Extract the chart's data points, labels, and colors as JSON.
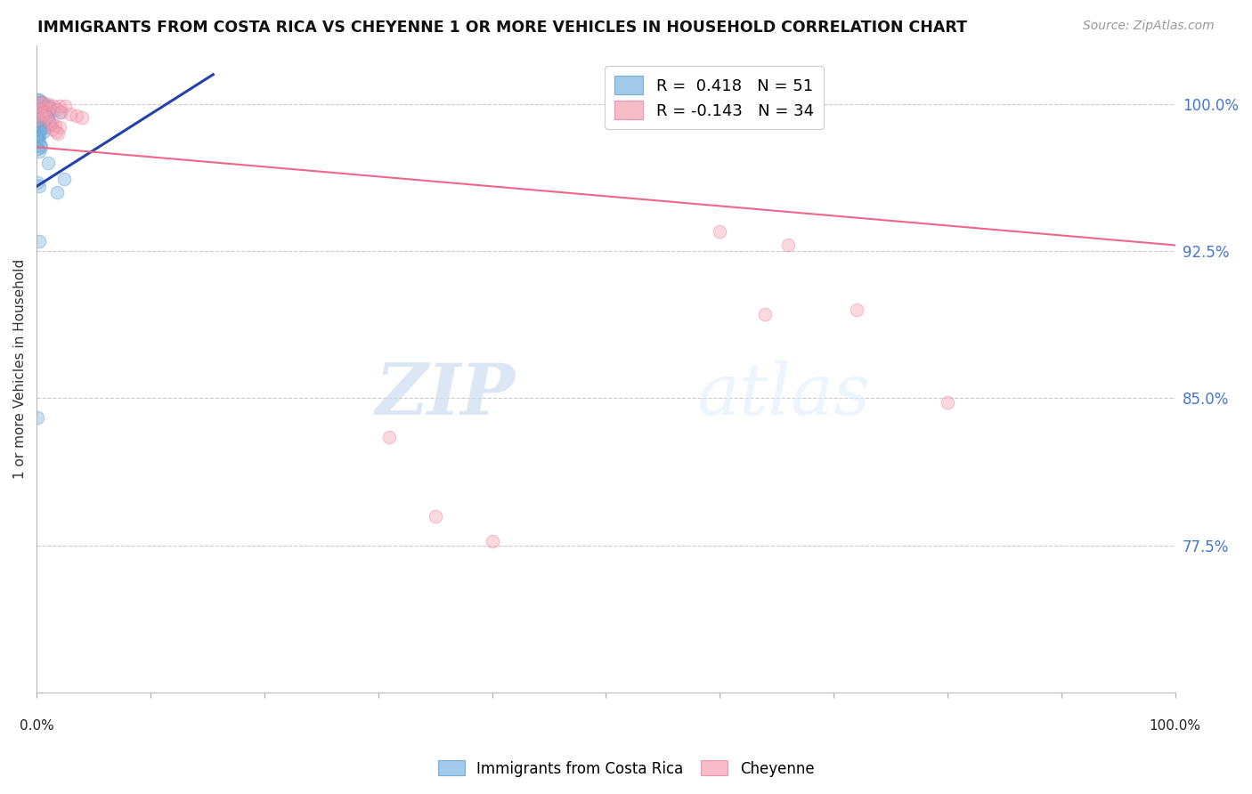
{
  "title": "IMMIGRANTS FROM COSTA RICA VS CHEYENNE 1 OR MORE VEHICLES IN HOUSEHOLD CORRELATION CHART",
  "source": "Source: ZipAtlas.com",
  "ylabel": "1 or more Vehicles in Household",
  "y_tick_labels": [
    "100.0%",
    "92.5%",
    "85.0%",
    "77.5%"
  ],
  "y_tick_values": [
    1.0,
    0.925,
    0.85,
    0.775
  ],
  "x_range": [
    0.0,
    1.0
  ],
  "y_range": [
    0.7,
    1.03
  ],
  "blue_scatter": [
    [
      0.001,
      1.002
    ],
    [
      0.002,
      1.002
    ],
    [
      0.003,
      1.001
    ],
    [
      0.004,
      1.001
    ],
    [
      0.005,
      1.0
    ],
    [
      0.006,
      1.0
    ],
    [
      0.007,
      0.999
    ],
    [
      0.008,
      0.999
    ],
    [
      0.009,
      0.998
    ],
    [
      0.01,
      0.998
    ],
    [
      0.011,
      0.999
    ],
    [
      0.012,
      0.997
    ],
    [
      0.002,
      0.997
    ],
    [
      0.003,
      0.996
    ],
    [
      0.004,
      0.996
    ],
    [
      0.005,
      0.995
    ],
    [
      0.006,
      0.995
    ],
    [
      0.007,
      0.994
    ],
    [
      0.008,
      0.994
    ],
    [
      0.009,
      0.993
    ],
    [
      0.001,
      0.993
    ],
    [
      0.002,
      0.992
    ],
    [
      0.003,
      0.991
    ],
    [
      0.004,
      0.99
    ],
    [
      0.005,
      0.99
    ],
    [
      0.006,
      0.989
    ],
    [
      0.001,
      0.988
    ],
    [
      0.002,
      0.987
    ],
    [
      0.003,
      0.986
    ],
    [
      0.001,
      0.985
    ],
    [
      0.002,
      0.984
    ],
    [
      0.001,
      0.983
    ],
    [
      0.015,
      0.997
    ],
    [
      0.02,
      0.996
    ],
    [
      0.01,
      0.992
    ],
    [
      0.012,
      0.99
    ],
    [
      0.008,
      0.988
    ],
    [
      0.006,
      0.986
    ],
    [
      0.001,
      0.982
    ],
    [
      0.002,
      0.981
    ],
    [
      0.003,
      0.979
    ],
    [
      0.004,
      0.978
    ],
    [
      0.001,
      0.977
    ],
    [
      0.002,
      0.976
    ],
    [
      0.001,
      0.96
    ],
    [
      0.002,
      0.958
    ],
    [
      0.018,
      0.955
    ],
    [
      0.002,
      0.93
    ],
    [
      0.001,
      0.84
    ],
    [
      0.024,
      0.962
    ],
    [
      0.01,
      0.97
    ]
  ],
  "pink_scatter": [
    [
      0.002,
      1.001
    ],
    [
      0.005,
      1.001
    ],
    [
      0.01,
      1.0
    ],
    [
      0.015,
      0.999
    ],
    [
      0.02,
      0.999
    ],
    [
      0.025,
      0.999
    ],
    [
      0.008,
      0.998
    ],
    [
      0.012,
      0.998
    ],
    [
      0.003,
      0.997
    ],
    [
      0.018,
      0.997
    ],
    [
      0.006,
      0.996
    ],
    [
      0.022,
      0.996
    ],
    [
      0.004,
      0.995
    ],
    [
      0.03,
      0.995
    ],
    [
      0.007,
      0.994
    ],
    [
      0.035,
      0.994
    ],
    [
      0.009,
      0.993
    ],
    [
      0.04,
      0.993
    ],
    [
      0.001,
      0.992
    ],
    [
      0.011,
      0.991
    ],
    [
      0.013,
      0.99
    ],
    [
      0.016,
      0.989
    ],
    [
      0.6,
      0.935
    ],
    [
      0.66,
      0.928
    ],
    [
      0.72,
      0.895
    ],
    [
      0.64,
      0.893
    ],
    [
      0.8,
      0.848
    ],
    [
      0.31,
      0.83
    ],
    [
      0.35,
      0.79
    ],
    [
      0.4,
      0.777
    ],
    [
      0.02,
      0.988
    ],
    [
      0.014,
      0.987
    ],
    [
      0.017,
      0.986
    ],
    [
      0.019,
      0.985
    ]
  ],
  "blue_line_x": [
    0.0,
    0.155
  ],
  "blue_line_y": [
    0.958,
    1.015
  ],
  "pink_line_x": [
    0.0,
    1.0
  ],
  "pink_line_y": [
    0.978,
    0.928
  ],
  "watermark_zip": "ZIP",
  "watermark_atlas": "atlas",
  "dot_size": 110,
  "dot_alpha": 0.4,
  "blue_color": "#7ab3e0",
  "pink_color": "#f4a0b0",
  "blue_edge_color": "#5599cc",
  "pink_edge_color": "#ee7799",
  "blue_line_color": "#2244aa",
  "pink_line_color": "#ee6688",
  "grid_color": "#cccccc",
  "right_label_color": "#4477cc",
  "legend_R1": "R =  0.418",
  "legend_N1": "N = 51",
  "legend_R2": "R = -0.143",
  "legend_N2": "N = 34"
}
